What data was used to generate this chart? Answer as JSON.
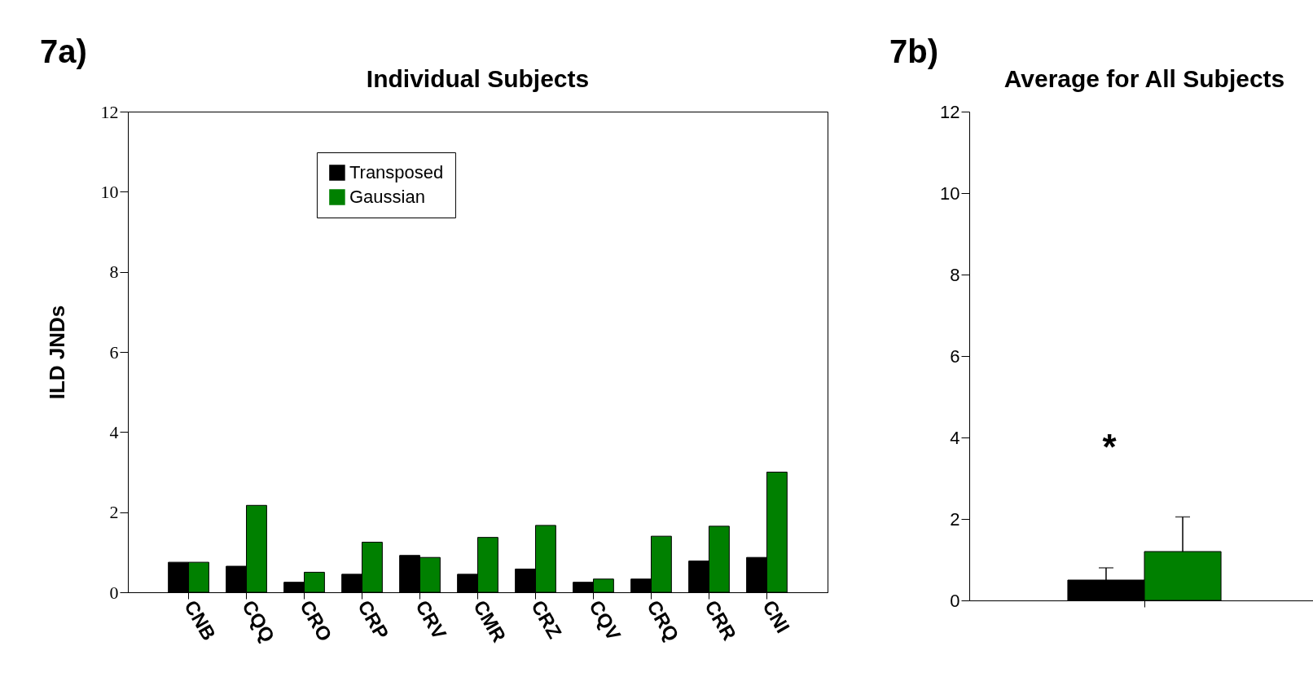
{
  "chart_data": [
    {
      "type": "bar",
      "title": "Individual Subjects",
      "ylabel": "ILD JNDs",
      "annotations": [
        "7a)"
      ],
      "categories": [
        "CNB",
        "CQQ",
        "CRO",
        "CRP",
        "CRV",
        "CMR",
        "CRZ",
        "CQV",
        "CRQ",
        "CRR",
        "CNI"
      ],
      "series": [
        {
          "name": "Transposed",
          "color": "#000000",
          "values": [
            0.75,
            0.65,
            0.25,
            0.45,
            0.92,
            0.45,
            0.58,
            0.25,
            0.33,
            0.78,
            0.87
          ]
        },
        {
          "name": "Gaussian",
          "color": "#008000",
          "values": [
            0.75,
            2.17,
            0.5,
            1.25,
            0.87,
            1.37,
            1.67,
            0.33,
            1.4,
            1.65,
            3.0
          ]
        }
      ],
      "ylim": [
        0,
        12
      ],
      "yticks": [
        0,
        2,
        4,
        6,
        8,
        10,
        12
      ],
      "grid": false,
      "legend": "top"
    },
    {
      "type": "bar",
      "title": "Average for All Subjects",
      "annotations": [
        "7b)",
        "*"
      ],
      "categories": [
        null
      ],
      "series": [
        {
          "color": "#000000",
          "values": [
            0.5
          ],
          "errors": [
            [
              0.5,
              0.8
            ]
          ]
        },
        {
          "color": "#008000",
          "values": [
            1.2
          ],
          "errors": [
            [
              1.2,
              2.05
            ]
          ]
        }
      ],
      "ylim": [
        0,
        12
      ],
      "yticks": [
        0,
        2,
        4,
        6,
        8,
        10,
        12
      ],
      "grid": false
    }
  ]
}
